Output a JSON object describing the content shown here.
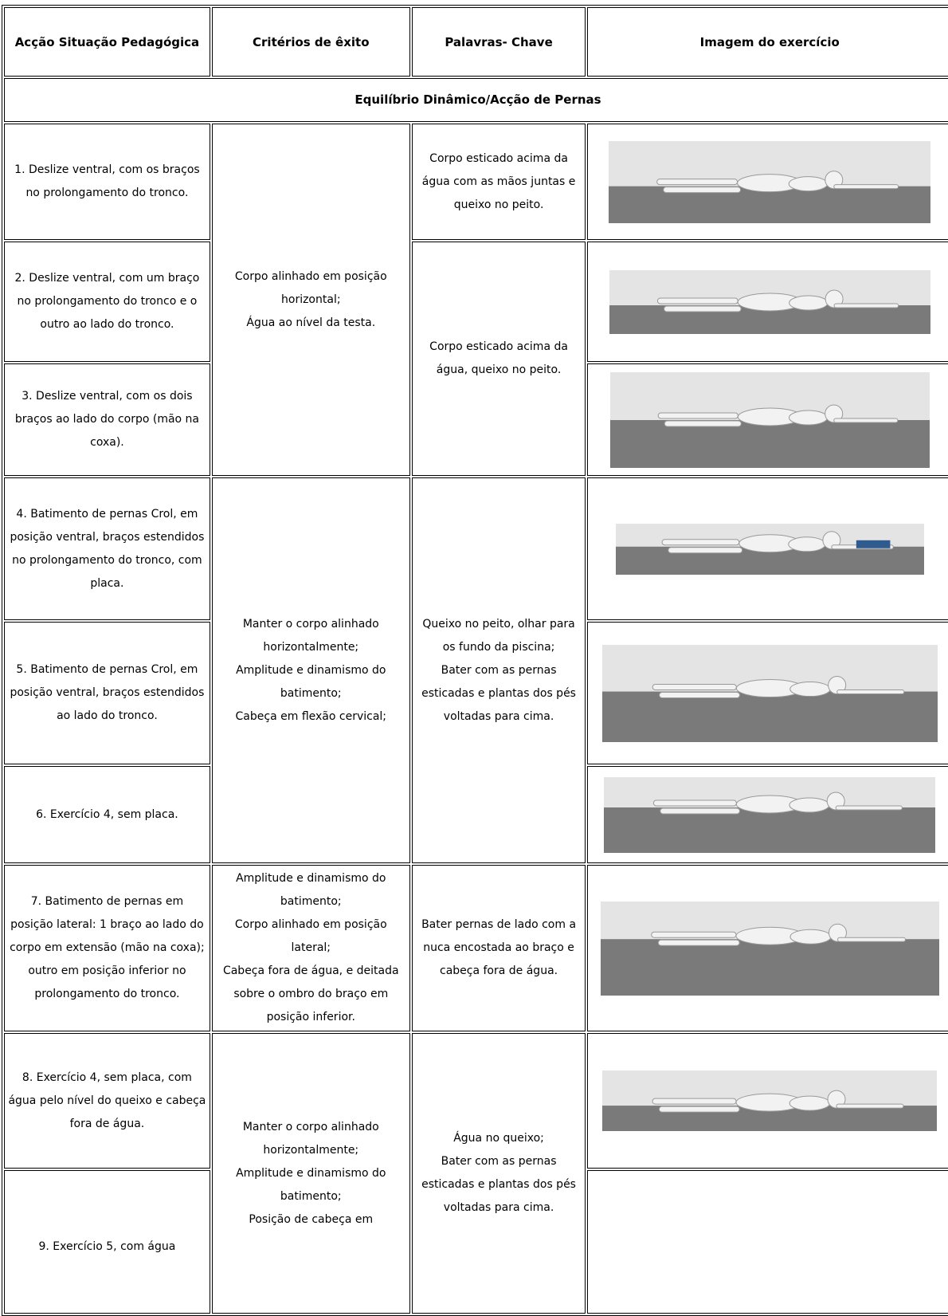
{
  "table": {
    "header": [
      "Acção Situação Pedagógica",
      "Critérios de êxito",
      "Palavras- Chave",
      "Imagem do exercício"
    ],
    "section": "Equilíbrio Dinâmico/Acção de Pernas",
    "actions": [
      "1. Deslize ventral, com os braços no prolongamento do tronco.",
      "2. Deslize ventral, com um braço no prolongamento do tronco e o outro ao lado do tronco.",
      "3. Deslize ventral, com os dois braços ao lado do corpo (mão na coxa).",
      "4. Batimento de pernas Crol, em posição ventral, braços estendidos no prolongamento do tronco, com placa.",
      "5. Batimento de pernas Crol, em posição ventral, braços estendidos ao lado do tronco.",
      "6. Exercício 4, sem placa.",
      "7. Batimento de pernas em posição lateral: 1 braço ao lado do corpo em extensão (mão na coxa); outro em posição inferior no prolongamento do tronco.",
      "8. Exercício 4, sem placa, com água pelo nível do queixo e cabeça fora de água.",
      "9. Exercício 5, com água"
    ],
    "criteria": [
      [
        "Corpo alinhado em posição horizontal;",
        "Água ao nível da testa."
      ],
      [
        "Manter o corpo alinhado horizontalmente;",
        "Amplitude e dinamismo do batimento;",
        "Cabeça em flexão cervical;"
      ],
      [
        "Amplitude e dinamismo do batimento;",
        "Corpo alinhado em posição lateral;",
        "Cabeça fora de água, e deitada sobre o ombro do braço em posição inferior."
      ],
      [
        "Manter o corpo alinhado horizontalmente;",
        "Amplitude e dinamismo do batimento;",
        "Posição de cabeça em"
      ]
    ],
    "keywords": [
      [
        "Corpo esticado acima da água com as mãos juntas e queixo no peito."
      ],
      [
        "Corpo esticado acima da água, queixo no peito."
      ],
      [
        "Queixo no peito, olhar para os fundo da piscina;",
        "Bater com as pernas esticadas e plantas dos pés voltadas para cima."
      ],
      [
        "Bater pernas de lado com a nuca encostada ao braço e cabeça fora de água."
      ],
      [
        "Água no queixo;",
        "Bater com as pernas esticadas e plantas dos pés voltadas para cima."
      ]
    ]
  }
}
